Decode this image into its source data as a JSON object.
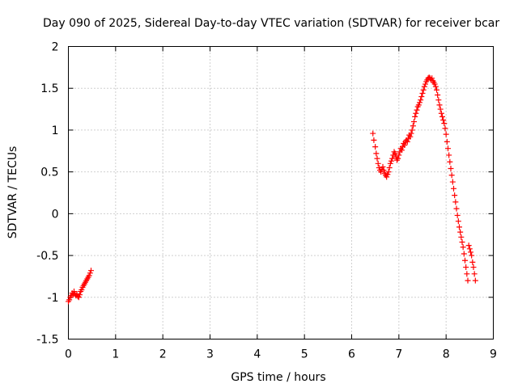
{
  "chart_data": {
    "type": "scatter",
    "title": "Day 090 of 2025, Sidereal Day-to-day VTEC variation (SDTVAR) for receiver bcar",
    "xlabel": "GPS time / hours",
    "ylabel": "SDTVAR / TECUs",
    "xlim": [
      0,
      9
    ],
    "ylim": [
      -1.5,
      2
    ],
    "grid": true,
    "marker": "plus",
    "color": "#ff0000",
    "x_ticks": [
      0,
      1,
      2,
      3,
      4,
      5,
      6,
      7,
      8,
      9
    ],
    "x_tick_labels": [
      "0",
      "1",
      "2",
      "3",
      "4",
      "5",
      "6",
      "7",
      "8",
      "9"
    ],
    "y_ticks": [
      2,
      1.5,
      1,
      0.5,
      0,
      -0.5,
      -1,
      -1.5
    ],
    "y_tick_labels": [
      "2",
      "1.5",
      "1",
      "0.5",
      "0",
      "-0.5",
      "-1",
      "-1.5"
    ],
    "series": [
      {
        "name": "SDTVAR",
        "x": [
          0.0,
          0.02,
          0.04,
          0.06,
          0.08,
          0.1,
          0.12,
          0.14,
          0.16,
          0.18,
          0.2,
          0.22,
          0.24,
          0.26,
          0.28,
          0.3,
          0.32,
          0.34,
          0.36,
          0.38,
          0.4,
          0.42,
          0.44,
          0.46,
          0.48,
          6.45,
          6.47,
          6.5,
          6.52,
          6.54,
          6.56,
          6.58,
          6.6,
          6.62,
          6.64,
          6.66,
          6.68,
          6.7,
          6.72,
          6.74,
          6.76,
          6.78,
          6.8,
          6.82,
          6.84,
          6.86,
          6.88,
          6.9,
          6.92,
          6.94,
          6.96,
          6.98,
          7.0,
          7.02,
          7.04,
          7.06,
          7.08,
          7.1,
          7.12,
          7.14,
          7.16,
          7.18,
          7.2,
          7.22,
          7.24,
          7.26,
          7.28,
          7.3,
          7.32,
          7.34,
          7.36,
          7.38,
          7.4,
          7.42,
          7.44,
          7.46,
          7.48,
          7.5,
          7.52,
          7.54,
          7.56,
          7.58,
          7.6,
          7.62,
          7.64,
          7.66,
          7.68,
          7.7,
          7.72,
          7.74,
          7.76,
          7.78,
          7.8,
          7.82,
          7.84,
          7.86,
          7.88,
          7.9,
          7.92,
          7.94,
          7.96,
          7.98,
          8.0,
          8.02,
          8.04,
          8.06,
          8.08,
          8.1,
          8.12,
          8.14,
          8.16,
          8.18,
          8.2,
          8.22,
          8.24,
          8.26,
          8.28,
          8.3,
          8.32,
          8.34,
          8.36,
          8.38,
          8.4,
          8.42,
          8.44,
          8.46,
          8.48,
          8.5,
          8.52,
          8.54,
          8.56,
          8.58,
          8.6,
          8.62
        ],
        "y": [
          -1.05,
          -1.03,
          -1.0,
          -0.98,
          -0.95,
          -0.97,
          -0.93,
          -0.96,
          -0.98,
          -0.96,
          -0.99,
          -1.0,
          -0.97,
          -0.93,
          -0.91,
          -0.88,
          -0.86,
          -0.84,
          -0.82,
          -0.8,
          -0.78,
          -0.76,
          -0.74,
          -0.71,
          -0.68,
          0.96,
          0.88,
          0.8,
          0.72,
          0.66,
          0.6,
          0.55,
          0.52,
          0.5,
          0.53,
          0.56,
          0.52,
          0.48,
          0.46,
          0.44,
          0.47,
          0.5,
          0.55,
          0.6,
          0.63,
          0.66,
          0.7,
          0.74,
          0.72,
          0.68,
          0.64,
          0.66,
          0.7,
          0.74,
          0.78,
          0.76,
          0.8,
          0.84,
          0.82,
          0.86,
          0.88,
          0.86,
          0.9,
          0.94,
          0.92,
          0.96,
          1.0,
          1.05,
          1.1,
          1.16,
          1.2,
          1.24,
          1.28,
          1.3,
          1.33,
          1.36,
          1.4,
          1.44,
          1.48,
          1.52,
          1.55,
          1.58,
          1.6,
          1.62,
          1.63,
          1.62,
          1.6,
          1.62,
          1.59,
          1.57,
          1.55,
          1.52,
          1.48,
          1.42,
          1.36,
          1.3,
          1.25,
          1.2,
          1.16,
          1.12,
          1.08,
          1.02,
          0.95,
          0.86,
          0.78,
          0.7,
          0.62,
          0.54,
          0.46,
          0.38,
          0.3,
          0.22,
          0.14,
          0.06,
          -0.02,
          -0.09,
          -0.16,
          -0.22,
          -0.28,
          -0.34,
          -0.4,
          -0.48,
          -0.56,
          -0.64,
          -0.72,
          -0.8,
          -0.38,
          -0.42,
          -0.46,
          -0.5,
          -0.58,
          -0.64,
          -0.72,
          -0.8
        ]
      }
    ]
  }
}
